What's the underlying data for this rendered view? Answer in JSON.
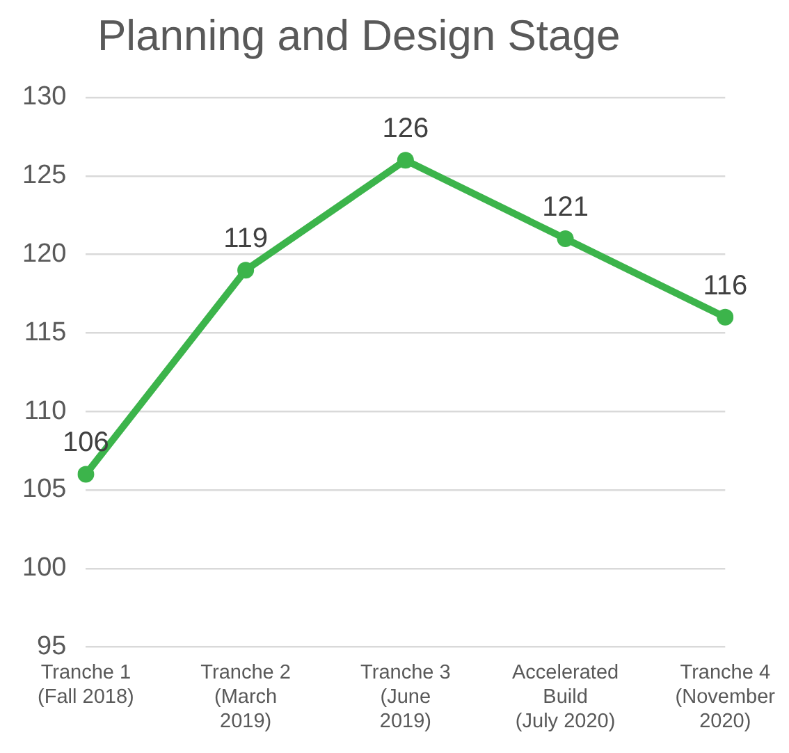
{
  "chart_data": {
    "type": "line",
    "title": "Planning and Design Stage",
    "categories": [
      "Tranche 1\n(Fall 2018)",
      "Tranche 2\n(March\n2019)",
      "Tranche 3\n(June\n2019)",
      "Accelerated\nBuild\n(July 2020)",
      "Tranche 4\n(November\n2020)"
    ],
    "series": [
      {
        "color": "#3cb44b",
        "values": [
          106,
          119,
          126,
          121,
          116
        ]
      }
    ],
    "ylim": [
      95,
      130
    ],
    "yticks": [
      95,
      100,
      105,
      110,
      115,
      120,
      125,
      130
    ],
    "grid": "y",
    "legend": false,
    "marker": "circle",
    "line_style": "solid",
    "data_labels": true
  }
}
